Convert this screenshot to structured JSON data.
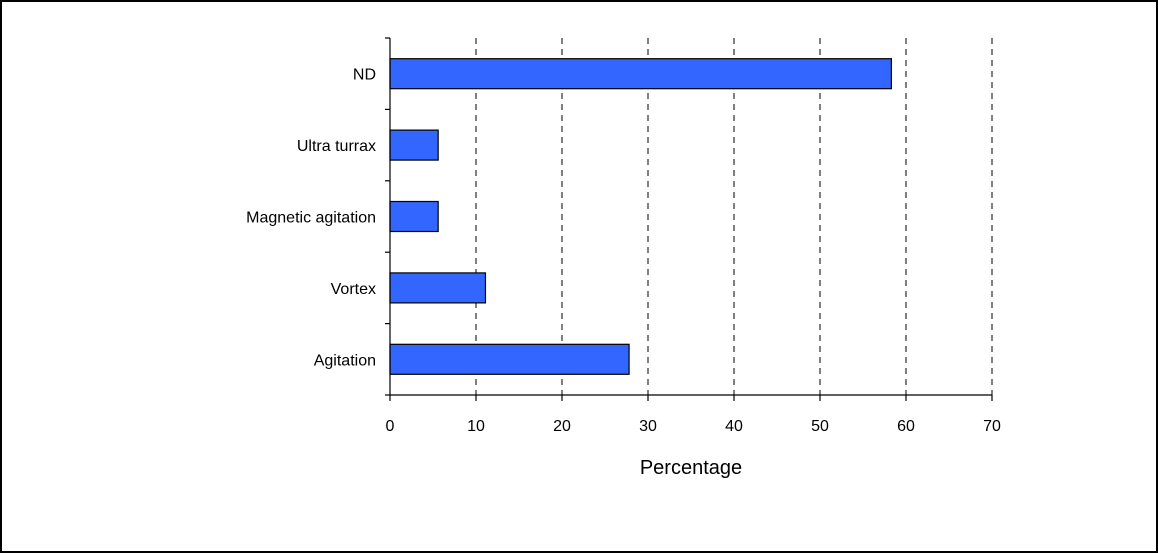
{
  "chart_data": {
    "type": "bar",
    "orientation": "horizontal",
    "categories": [
      "ND",
      "Ultra turrax",
      "Magnetic agitation",
      "Vortex",
      "Agitation"
    ],
    "values": [
      58.3,
      5.6,
      5.6,
      11.1,
      27.8
    ],
    "xlabel": "Percentage",
    "ylabel": "",
    "title": "",
    "xlim": [
      0,
      70
    ],
    "xticks": [
      0,
      10,
      20,
      30,
      40,
      50,
      60,
      70
    ],
    "grid": "vertical-dashed",
    "legend": "none",
    "colors": {
      "bar_fill": "#3366ff",
      "bar_stroke": "#000000",
      "grid": "#000000"
    }
  }
}
